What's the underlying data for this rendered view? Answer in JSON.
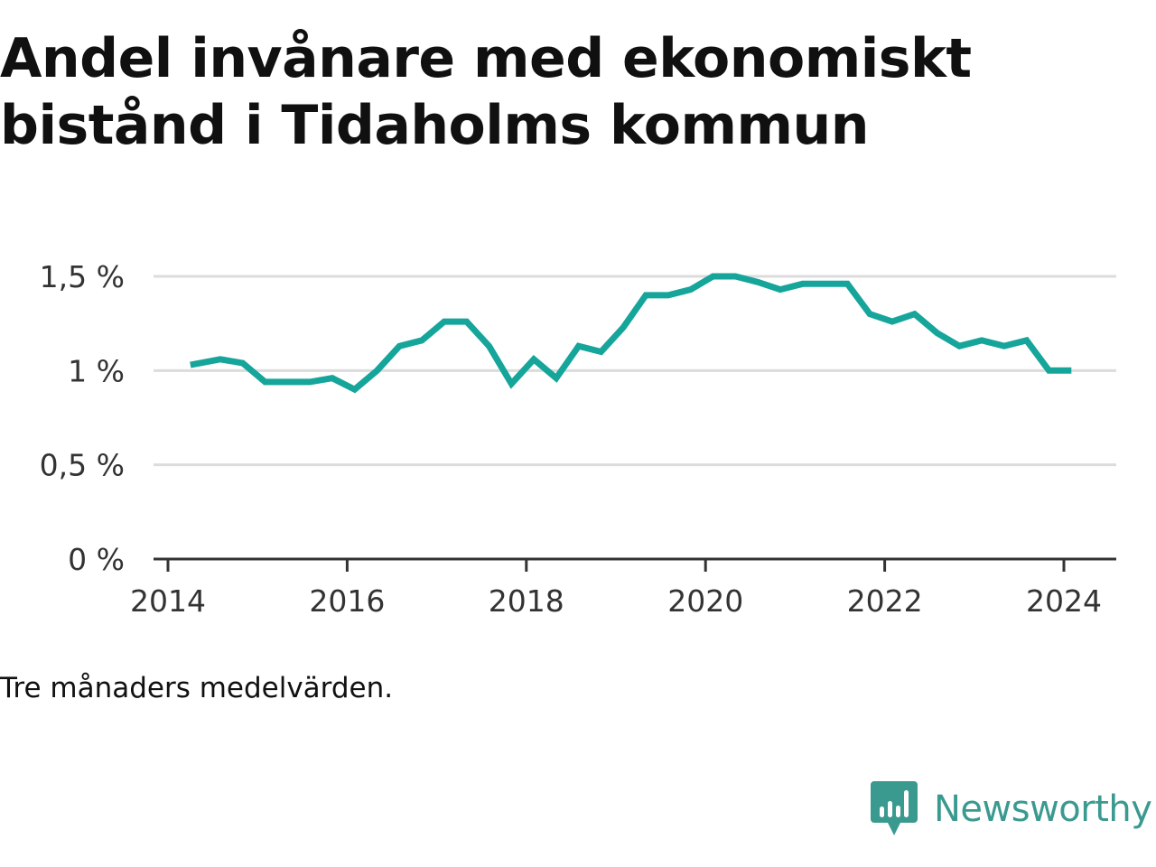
{
  "title": "Andel invånare med ekonomiskt bistånd i Tidaholms kommun",
  "note": "Tre månaders medelvärden.",
  "brand": {
    "name": "Newsworthy",
    "icon": "newsworthy-bar-chart-logo-icon",
    "color": "#3a9a90"
  },
  "colors": {
    "line": "#16a59a",
    "grid": "#dcdcdc",
    "axis": "#333333"
  },
  "chart_data": {
    "type": "line",
    "title": "Andel invånare med ekonomiskt bistånd i Tidaholms kommun",
    "xlabel": "",
    "ylabel": "",
    "grid": true,
    "legend": "none",
    "xlim": [
      "2014-01-01",
      "2024-07-01"
    ],
    "ylim": [
      0,
      1.5
    ],
    "y_ticks": [
      {
        "value": 0,
        "label": "0 %"
      },
      {
        "value": 0.5,
        "label": "0,5 %"
      },
      {
        "value": 1,
        "label": "1 %"
      },
      {
        "value": 1.5,
        "label": "1,5 %"
      }
    ],
    "x_ticks": [
      {
        "value": "2014-01-01",
        "label": "2014"
      },
      {
        "value": "2016-01-01",
        "label": "2016"
      },
      {
        "value": "2018-01-01",
        "label": "2018"
      },
      {
        "value": "2020-01-01",
        "label": "2020"
      },
      {
        "value": "2022-01-01",
        "label": "2022"
      },
      {
        "value": "2024-01-01",
        "label": "2024"
      }
    ],
    "series": [
      {
        "values": [
          {
            "x": "2014-04",
            "y": 1.03
          },
          {
            "x": "2014-08",
            "y": 1.06
          },
          {
            "x": "2014-11",
            "y": 1.04
          },
          {
            "x": "2015-02",
            "y": 0.94
          },
          {
            "x": "2015-05",
            "y": 0.94
          },
          {
            "x": "2015-08",
            "y": 0.94
          },
          {
            "x": "2015-11",
            "y": 0.96
          },
          {
            "x": "2016-02",
            "y": 0.9
          },
          {
            "x": "2016-05",
            "y": 1.0
          },
          {
            "x": "2016-08",
            "y": 1.13
          },
          {
            "x": "2016-11",
            "y": 1.16
          },
          {
            "x": "2017-02",
            "y": 1.26
          },
          {
            "x": "2017-05",
            "y": 1.26
          },
          {
            "x": "2017-08",
            "y": 1.13
          },
          {
            "x": "2017-11",
            "y": 0.93
          },
          {
            "x": "2018-02",
            "y": 1.06
          },
          {
            "x": "2018-05",
            "y": 0.96
          },
          {
            "x": "2018-08",
            "y": 1.13
          },
          {
            "x": "2018-11",
            "y": 1.1
          },
          {
            "x": "2019-02",
            "y": 1.23
          },
          {
            "x": "2019-05",
            "y": 1.4
          },
          {
            "x": "2019-08",
            "y": 1.4
          },
          {
            "x": "2019-11",
            "y": 1.43
          },
          {
            "x": "2020-02",
            "y": 1.5
          },
          {
            "x": "2020-05",
            "y": 1.5
          },
          {
            "x": "2020-08",
            "y": 1.47
          },
          {
            "x": "2020-11",
            "y": 1.43
          },
          {
            "x": "2021-02",
            "y": 1.46
          },
          {
            "x": "2021-05",
            "y": 1.46
          },
          {
            "x": "2021-08",
            "y": 1.46
          },
          {
            "x": "2021-11",
            "y": 1.3
          },
          {
            "x": "2022-02",
            "y": 1.26
          },
          {
            "x": "2022-05",
            "y": 1.3
          },
          {
            "x": "2022-08",
            "y": 1.2
          },
          {
            "x": "2022-11",
            "y": 1.13
          },
          {
            "x": "2023-02",
            "y": 1.16
          },
          {
            "x": "2023-05",
            "y": 1.13
          },
          {
            "x": "2023-08",
            "y": 1.16
          },
          {
            "x": "2023-11",
            "y": 1.0
          },
          {
            "x": "2024-02",
            "y": 1.0
          }
        ]
      }
    ]
  }
}
